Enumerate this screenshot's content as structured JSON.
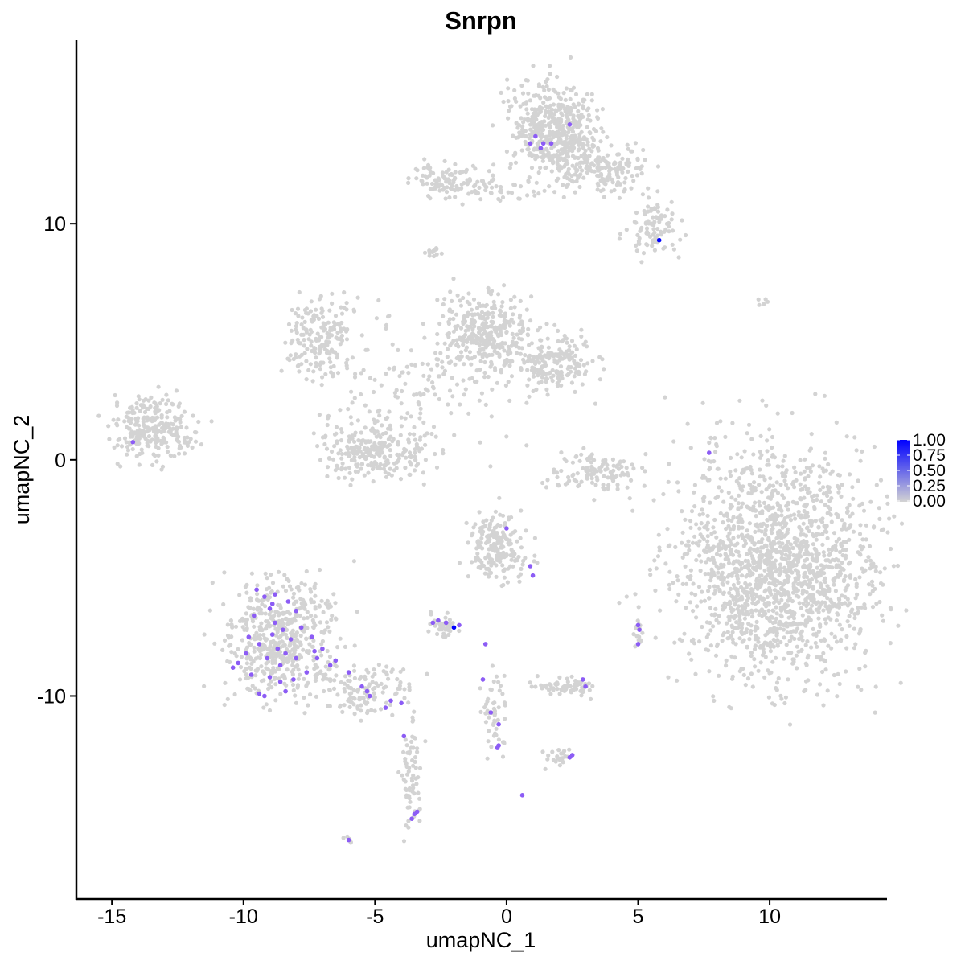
{
  "chart_data": {
    "type": "scatter",
    "title": "Snrpn",
    "xlabel": "umapNC_1",
    "ylabel": "umapNC_2",
    "xlim": [
      -16.35,
      14.46
    ],
    "ylim": [
      -18.6,
      17.77
    ],
    "xticks": [
      -15,
      -10,
      -5,
      0,
      5,
      10
    ],
    "yticks": [
      -10,
      0,
      10
    ],
    "xtick_labels": [
      "-15",
      "-10",
      "-5",
      "0",
      "5",
      "10"
    ],
    "ytick_labels": [
      "-10",
      "0",
      "10"
    ],
    "grid": false,
    "legend_placement": "right",
    "colors": {
      "low": "#d3d3d3",
      "high": "#0000ff"
    },
    "colorbar": {
      "min": 0,
      "max": 1,
      "labels": [
        "1.00",
        "0.75",
        "0.50",
        "0.25",
        "0.00"
      ],
      "values": [
        1,
        0.75,
        0.5,
        0.25,
        0
      ]
    },
    "clusters_unexpressed": [
      {
        "center": [
          1.8,
          14.0
        ],
        "sd": [
          0.9,
          1.0
        ],
        "n": 500
      },
      {
        "center": [
          3.8,
          12.2
        ],
        "sd": [
          1.0,
          0.5
        ],
        "n": 160
      },
      {
        "center": [
          5.6,
          9.8
        ],
        "sd": [
          0.5,
          0.6
        ],
        "n": 90
      },
      {
        "center": [
          -2.3,
          11.9
        ],
        "sd": [
          0.7,
          0.3
        ],
        "n": 90
      },
      {
        "center": [
          -0.3,
          11.4
        ],
        "sd": [
          1.0,
          0.25
        ],
        "n": 50
      },
      {
        "center": [
          -0.9,
          5.4
        ],
        "sd": [
          0.8,
          0.8
        ],
        "n": 320
      },
      {
        "center": [
          1.6,
          4.1
        ],
        "sd": [
          0.9,
          0.6
        ],
        "n": 220
      },
      {
        "center": [
          -7.0,
          5.3
        ],
        "sd": [
          0.6,
          0.8
        ],
        "n": 180
      },
      {
        "center": [
          -5.0,
          0.3
        ],
        "sd": [
          1.1,
          0.6
        ],
        "n": 260
      },
      {
        "center": [
          -3.4,
          3.4
        ],
        "sd": [
          2.0,
          1.4
        ],
        "n": 150
      },
      {
        "center": [
          -13.4,
          1.3
        ],
        "sd": [
          0.8,
          0.7
        ],
        "n": 260
      },
      {
        "center": [
          3.5,
          -0.6
        ],
        "sd": [
          0.9,
          0.4
        ],
        "n": 120
      },
      {
        "center": [
          10.2,
          -4.4
        ],
        "sd": [
          1.9,
          2.4
        ],
        "n": 1700
      },
      {
        "center": [
          -0.3,
          -3.7
        ],
        "sd": [
          0.6,
          0.7
        ],
        "n": 200
      },
      {
        "center": [
          -8.6,
          -7.5
        ],
        "sd": [
          1.0,
          1.3
        ],
        "n": 520
      },
      {
        "center": [
          -5.5,
          -9.8
        ],
        "sd": [
          1.0,
          0.5
        ],
        "n": 140
      },
      {
        "center": [
          -3.6,
          -13.6
        ],
        "sd": [
          0.2,
          1.2
        ],
        "n": 70
      },
      {
        "center": [
          -2.4,
          -7.0
        ],
        "sd": [
          0.3,
          0.25
        ],
        "n": 45
      },
      {
        "center": [
          2.3,
          -9.6
        ],
        "sd": [
          0.6,
          0.2
        ],
        "n": 70
      },
      {
        "center": [
          -0.45,
          -10.8
        ],
        "sd": [
          0.25,
          1.0
        ],
        "n": 50
      },
      {
        "center": [
          2.1,
          -12.6
        ],
        "sd": [
          0.3,
          0.2
        ],
        "n": 25
      },
      {
        "center": [
          -6.0,
          -16.1
        ],
        "sd": [
          0.08,
          0.08
        ],
        "n": 6
      },
      {
        "center": [
          5.0,
          -7.3
        ],
        "sd": [
          0.1,
          0.3
        ],
        "n": 15
      },
      {
        "center": [
          7.8,
          0.2
        ],
        "sd": [
          0.1,
          0.5
        ],
        "n": 12
      },
      {
        "center": [
          -2.8,
          8.9
        ],
        "sd": [
          0.15,
          0.15
        ],
        "n": 12
      },
      {
        "center": [
          9.7,
          6.7
        ],
        "sd": [
          0.2,
          0.1
        ],
        "n": 5
      }
    ],
    "expressing_points": [
      [
        1.1,
        13.7,
        0.6
      ],
      [
        0.9,
        13.4,
        0.6
      ],
      [
        1.4,
        13.4,
        0.6
      ],
      [
        1.7,
        13.4,
        0.6
      ],
      [
        2.4,
        14.2,
        0.6
      ],
      [
        1.3,
        13.2,
        0.6
      ],
      [
        5.8,
        9.3,
        1.0
      ],
      [
        -14.2,
        0.75,
        0.6
      ],
      [
        7.7,
        0.3,
        0.6
      ],
      [
        0.0,
        -2.9,
        0.6
      ],
      [
        0.9,
        -4.5,
        0.6
      ],
      [
        1.0,
        -4.9,
        0.6
      ],
      [
        -2.6,
        -6.8,
        0.6
      ],
      [
        -2.3,
        -6.9,
        0.6
      ],
      [
        -2.8,
        -6.9,
        0.6
      ],
      [
        -2.0,
        -7.1,
        1.0
      ],
      [
        -1.8,
        -7.0,
        0.6
      ],
      [
        -0.8,
        -7.8,
        0.6
      ],
      [
        5.0,
        -7.0,
        0.6
      ],
      [
        5.05,
        -7.2,
        0.6
      ],
      [
        5.0,
        -7.8,
        0.6
      ],
      [
        2.9,
        -9.3,
        0.6
      ],
      [
        3.0,
        -9.6,
        0.6
      ],
      [
        -0.9,
        -9.3,
        0.6
      ],
      [
        -0.6,
        -10.7,
        0.6
      ],
      [
        -0.3,
        -11.2,
        0.6
      ],
      [
        -0.3,
        -12.1,
        0.6
      ],
      [
        -0.35,
        -12.2,
        0.6
      ],
      [
        2.4,
        -12.6,
        0.6
      ],
      [
        2.5,
        -12.5,
        0.6
      ],
      [
        0.6,
        -14.2,
        0.6
      ],
      [
        -3.6,
        -15.2,
        0.6
      ],
      [
        -3.4,
        -14.9,
        0.6
      ],
      [
        -3.5,
        -15.0,
        0.6
      ],
      [
        -6.0,
        -16.1,
        0.6
      ],
      [
        -3.9,
        -11.7,
        0.6
      ],
      [
        -4.0,
        -10.3,
        0.6
      ],
      [
        -4.4,
        -10.2,
        0.6
      ],
      [
        -4.6,
        -10.5,
        0.6
      ],
      [
        -5.2,
        -10.0,
        0.6
      ],
      [
        -5.5,
        -9.6,
        0.6
      ],
      [
        -5.3,
        -9.8,
        0.6
      ],
      [
        -6.0,
        -9.0,
        0.6
      ],
      [
        -6.5,
        -8.5,
        0.6
      ],
      [
        -6.7,
        -8.7,
        0.6
      ],
      [
        -7.3,
        -8.1,
        0.6
      ],
      [
        -9.5,
        -5.5,
        0.6
      ],
      [
        -9.2,
        -5.8,
        0.6
      ],
      [
        -8.8,
        -5.7,
        0.6
      ],
      [
        -9.0,
        -6.3,
        0.6
      ],
      [
        -8.3,
        -6.0,
        0.6
      ],
      [
        -9.8,
        -7.5,
        0.6
      ],
      [
        -9.4,
        -7.8,
        0.6
      ],
      [
        -8.9,
        -7.4,
        0.6
      ],
      [
        -8.5,
        -7.2,
        0.6
      ],
      [
        -8.2,
        -7.6,
        0.6
      ],
      [
        -8.7,
        -8.0,
        0.6
      ],
      [
        -9.1,
        -8.4,
        0.6
      ],
      [
        -10.2,
        -8.6,
        0.6
      ],
      [
        -10.4,
        -8.8,
        0.6
      ],
      [
        -9.7,
        -9.1,
        0.6
      ],
      [
        -9.0,
        -9.2,
        0.6
      ],
      [
        -8.6,
        -8.7,
        0.6
      ],
      [
        -8.0,
        -8.4,
        0.6
      ],
      [
        -7.8,
        -7.1,
        0.6
      ],
      [
        -7.4,
        -7.5,
        0.6
      ],
      [
        -8.1,
        -9.3,
        0.6
      ],
      [
        -9.4,
        -9.9,
        0.6
      ],
      [
        -9.2,
        -10.0,
        0.6
      ],
      [
        -8.4,
        -9.8,
        0.6
      ],
      [
        -7.6,
        -9.0,
        0.6
      ],
      [
        -8.8,
        -6.9,
        0.6
      ],
      [
        -9.6,
        -6.6,
        0.6
      ],
      [
        -8.0,
        -6.4,
        0.6
      ],
      [
        -7.2,
        -8.4,
        0.6
      ],
      [
        -8.4,
        -8.2,
        0.6
      ],
      [
        -9.9,
        -8.2,
        0.6
      ],
      [
        -8.6,
        -9.4,
        0.6
      ],
      [
        -7.0,
        -8.0,
        0.6
      ],
      [
        -8.9,
        -6.1,
        0.6
      ]
    ]
  }
}
